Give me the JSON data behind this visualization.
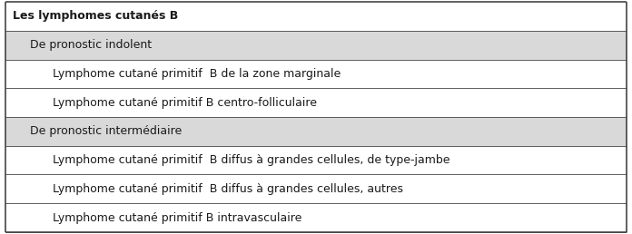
{
  "rows": [
    {
      "text": "Les lymphomes cutanés B",
      "indent": 0,
      "bold": true,
      "bg": "#ffffff"
    },
    {
      "text": "De pronostic indolent",
      "indent": 1,
      "bold": false,
      "bg": "#d9d9d9"
    },
    {
      "text": "Lymphome cutané primitif  B de la zone marginale",
      "indent": 2,
      "bold": false,
      "bg": "#ffffff"
    },
    {
      "text": "Lymphome cutané primitif B centro-folliculaire",
      "indent": 2,
      "bold": false,
      "bg": "#ffffff"
    },
    {
      "text": "De pronostic intermédiaire",
      "indent": 1,
      "bold": false,
      "bg": "#d9d9d9"
    },
    {
      "text": "Lymphome cutané primitif  B diffus à grandes cellules, de type-jambe",
      "indent": 2,
      "bold": false,
      "bg": "#ffffff"
    },
    {
      "text": "Lymphome cutané primitif  B diffus à grandes cellules, autres",
      "indent": 2,
      "bold": false,
      "bg": "#ffffff"
    },
    {
      "text": "Lymphome cutané primitif B intravasculaire",
      "indent": 2,
      "bold": false,
      "bg": "#ffffff"
    }
  ],
  "border_color": "#444444",
  "text_color": "#1a1a1a",
  "font_size": 9.0,
  "indent_offsets": [
    0.012,
    0.04,
    0.075
  ],
  "figure_bg": "#ffffff",
  "outer_border_lw": 1.2,
  "inner_border_lw": 0.6,
  "fig_width": 6.96,
  "fig_height": 2.58,
  "dpi": 100
}
